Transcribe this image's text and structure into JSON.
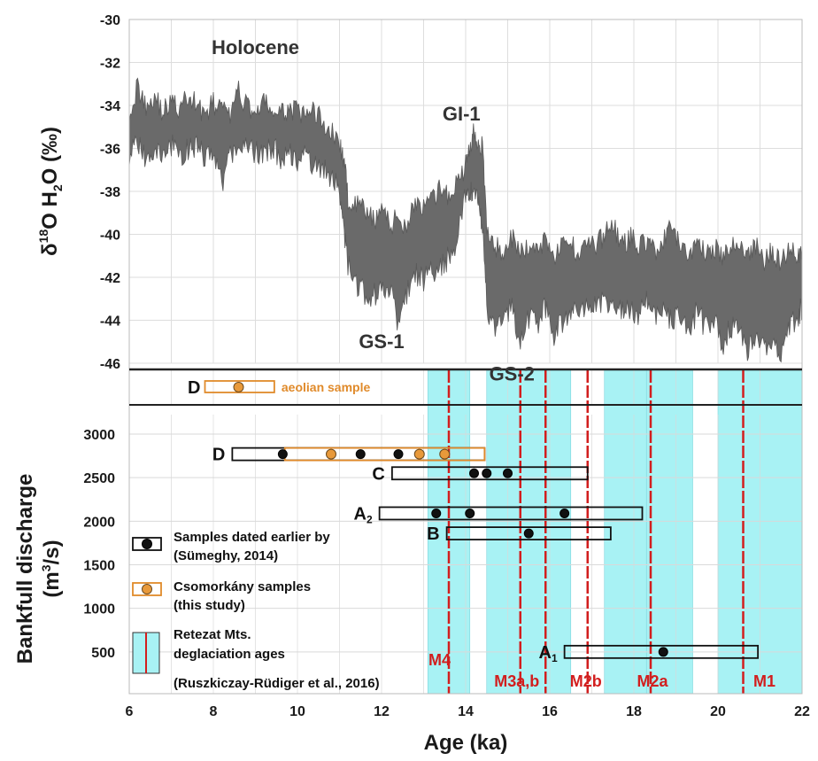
{
  "chart_data": [
    {
      "type": "area",
      "ylabel": "δ18O H2O (‰)",
      "ylabel_parts": {
        "delta": "δ",
        "sup": "18",
        "o": "O H",
        "sub": "2",
        "rest": "O (‰)"
      },
      "xlim": [
        6,
        22
      ],
      "ylim": [
        -46,
        -30
      ],
      "y_ticks": [
        "-30",
        "-32",
        "-34",
        "-36",
        "-38",
        "-40",
        "-42",
        "-44",
        "-46"
      ],
      "grid": true,
      "band_color": "#6a6a6a",
      "envelope": [
        {
          "x": 6.0,
          "upper": -34.2,
          "lower": -36.2
        },
        {
          "x": 6.2,
          "upper": -33.2,
          "lower": -35.8
        },
        {
          "x": 6.4,
          "upper": -34.0,
          "lower": -36.5
        },
        {
          "x": 6.6,
          "upper": -33.5,
          "lower": -36.0
        },
        {
          "x": 6.8,
          "upper": -34.3,
          "lower": -36.4
        },
        {
          "x": 7.0,
          "upper": -33.8,
          "lower": -35.9
        },
        {
          "x": 7.2,
          "upper": -34.2,
          "lower": -36.3
        },
        {
          "x": 7.4,
          "upper": -33.6,
          "lower": -36.0
        },
        {
          "x": 7.6,
          "upper": -33.9,
          "lower": -35.8
        },
        {
          "x": 7.8,
          "upper": -34.4,
          "lower": -36.5
        },
        {
          "x": 8.0,
          "upper": -33.9,
          "lower": -36.1
        },
        {
          "x": 8.2,
          "upper": -34.2,
          "lower": -37.6
        },
        {
          "x": 8.4,
          "upper": -34.5,
          "lower": -36.4
        },
        {
          "x": 8.6,
          "upper": -33.4,
          "lower": -35.8
        },
        {
          "x": 8.8,
          "upper": -34.0,
          "lower": -35.9
        },
        {
          "x": 9.0,
          "upper": -34.3,
          "lower": -36.2
        },
        {
          "x": 9.2,
          "upper": -33.9,
          "lower": -36.3
        },
        {
          "x": 9.4,
          "upper": -34.2,
          "lower": -35.9
        },
        {
          "x": 9.6,
          "upper": -34.5,
          "lower": -36.4
        },
        {
          "x": 9.8,
          "upper": -34.1,
          "lower": -36.2
        },
        {
          "x": 10.0,
          "upper": -34.3,
          "lower": -36.6
        },
        {
          "x": 10.2,
          "upper": -34.6,
          "lower": -36.4
        },
        {
          "x": 10.4,
          "upper": -34.2,
          "lower": -36.8
        },
        {
          "x": 10.6,
          "upper": -34.8,
          "lower": -37.0
        },
        {
          "x": 10.8,
          "upper": -35.2,
          "lower": -37.3
        },
        {
          "x": 11.0,
          "upper": -35.8,
          "lower": -38.0
        },
        {
          "x": 11.1,
          "upper": -36.5,
          "lower": -39.5
        },
        {
          "x": 11.2,
          "upper": -38.3,
          "lower": -41.5
        },
        {
          "x": 11.4,
          "upper": -38.6,
          "lower": -42.2
        },
        {
          "x": 11.6,
          "upper": -38.9,
          "lower": -42.8
        },
        {
          "x": 11.8,
          "upper": -39.4,
          "lower": -42.9
        },
        {
          "x": 12.0,
          "upper": -38.8,
          "lower": -42.6
        },
        {
          "x": 12.2,
          "upper": -39.6,
          "lower": -42.3
        },
        {
          "x": 12.4,
          "upper": -39.2,
          "lower": -44.2
        },
        {
          "x": 12.6,
          "upper": -39.6,
          "lower": -42.7
        },
        {
          "x": 12.8,
          "upper": -38.4,
          "lower": -41.9
        },
        {
          "x": 13.0,
          "upper": -38.9,
          "lower": -42.1
        },
        {
          "x": 13.2,
          "upper": -38.5,
          "lower": -41.7
        },
        {
          "x": 13.4,
          "upper": -37.9,
          "lower": -41.5
        },
        {
          "x": 13.6,
          "upper": -38.3,
          "lower": -41.1
        },
        {
          "x": 13.8,
          "upper": -37.6,
          "lower": -40.2
        },
        {
          "x": 14.0,
          "upper": -36.8,
          "lower": -38.2
        },
        {
          "x": 14.1,
          "upper": -36.0,
          "lower": -37.8
        },
        {
          "x": 14.2,
          "upper": -35.0,
          "lower": -38.0
        },
        {
          "x": 14.3,
          "upper": -35.8,
          "lower": -38.4
        },
        {
          "x": 14.4,
          "upper": -36.0,
          "lower": -39.5
        },
        {
          "x": 14.5,
          "upper": -39.8,
          "lower": -43.4
        },
        {
          "x": 14.7,
          "upper": -40.6,
          "lower": -44.5
        },
        {
          "x": 14.9,
          "upper": -40.8,
          "lower": -43.8
        },
        {
          "x": 15.1,
          "upper": -40.2,
          "lower": -43.3
        },
        {
          "x": 15.3,
          "upper": -40.9,
          "lower": -45.0
        },
        {
          "x": 15.5,
          "upper": -40.5,
          "lower": -43.8
        },
        {
          "x": 15.7,
          "upper": -40.8,
          "lower": -44.2
        },
        {
          "x": 15.9,
          "upper": -40.1,
          "lower": -43.4
        },
        {
          "x": 16.1,
          "upper": -41.0,
          "lower": -44.6
        },
        {
          "x": 16.3,
          "upper": -40.6,
          "lower": -44.0
        },
        {
          "x": 16.5,
          "upper": -40.4,
          "lower": -43.6
        },
        {
          "x": 16.7,
          "upper": -40.9,
          "lower": -43.8
        },
        {
          "x": 16.9,
          "upper": -40.2,
          "lower": -43.0
        },
        {
          "x": 17.1,
          "upper": -40.6,
          "lower": -43.5
        },
        {
          "x": 17.3,
          "upper": -40.0,
          "lower": -43.0
        },
        {
          "x": 17.5,
          "upper": -39.4,
          "lower": -43.2
        },
        {
          "x": 17.7,
          "upper": -40.6,
          "lower": -43.7
        },
        {
          "x": 17.9,
          "upper": -40.1,
          "lower": -43.4
        },
        {
          "x": 18.1,
          "upper": -40.5,
          "lower": -43.9
        },
        {
          "x": 18.3,
          "upper": -40.3,
          "lower": -43.2
        },
        {
          "x": 18.5,
          "upper": -40.8,
          "lower": -43.9
        },
        {
          "x": 18.7,
          "upper": -40.4,
          "lower": -43.5
        },
        {
          "x": 18.9,
          "upper": -39.7,
          "lower": -44.1
        },
        {
          "x": 19.1,
          "upper": -40.6,
          "lower": -43.7
        },
        {
          "x": 19.3,
          "upper": -41.0,
          "lower": -44.4
        },
        {
          "x": 19.5,
          "upper": -40.2,
          "lower": -43.6
        },
        {
          "x": 19.7,
          "upper": -40.9,
          "lower": -44.3
        },
        {
          "x": 19.9,
          "upper": -40.5,
          "lower": -43.8
        },
        {
          "x": 20.1,
          "upper": -41.1,
          "lower": -45.1
        },
        {
          "x": 20.3,
          "upper": -40.7,
          "lower": -44.4
        },
        {
          "x": 20.5,
          "upper": -40.3,
          "lower": -44.0
        },
        {
          "x": 20.7,
          "upper": -41.0,
          "lower": -45.4
        },
        {
          "x": 20.9,
          "upper": -40.6,
          "lower": -44.6
        },
        {
          "x": 21.1,
          "upper": -41.2,
          "lower": -45.2
        },
        {
          "x": 21.3,
          "upper": -40.8,
          "lower": -44.8
        },
        {
          "x": 21.5,
          "upper": -41.3,
          "lower": -45.6
        },
        {
          "x": 21.7,
          "upper": -40.5,
          "lower": -44.2
        },
        {
          "x": 21.9,
          "upper": -40.9,
          "lower": -43.8
        },
        {
          "x": 22.0,
          "upper": -40.6,
          "lower": -43.4
        }
      ],
      "annotations": [
        {
          "text": "Holocene",
          "x": 9.0,
          "y": -31.6
        },
        {
          "text": "GI-1",
          "x": 13.9,
          "y": -34.7
        },
        {
          "text": "GS-1",
          "x": 12.0,
          "y": -45.3
        },
        {
          "text": "GS-2",
          "x": 15.1,
          "y": -46.8
        }
      ]
    },
    {
      "type": "scatter",
      "xlabel": "Age (ka)",
      "ylabel": "Bankfull discharge (m3/s)",
      "ylabel_parts": {
        "main": "Bankfull discharge",
        "unit_pre": "(m",
        "sup": "3",
        "unit_post": "/s)"
      },
      "xlim": [
        6,
        22
      ],
      "ylim": [
        0,
        3000
      ],
      "x_ticks": [
        "6",
        "8",
        "10",
        "12",
        "14",
        "16",
        "18",
        "20",
        "22"
      ],
      "y_ticks": [
        "500",
        "1000",
        "1500",
        "2000",
        "2500",
        "3000"
      ],
      "grid": true,
      "deglaciation_bands": [
        {
          "from": 13.1,
          "to": 14.1
        },
        {
          "from": 14.5,
          "to": 16.5
        },
        {
          "from": 17.3,
          "to": 18.3
        },
        {
          "from": 18.3,
          "to": 19.4
        },
        {
          "from": 20.0,
          "to": 22.0
        }
      ],
      "band_color": "#a8f2f4",
      "deglaciation_ages": [
        {
          "name": "M4",
          "x": 13.6
        },
        {
          "name": "M3a,b",
          "x": 15.3
        },
        {
          "name": "",
          "x": 15.9
        },
        {
          "name": "M2b",
          "x": 16.9
        },
        {
          "name": "M2a",
          "x": 18.4
        },
        {
          "name": "M1",
          "x": 20.6
        }
      ],
      "age_line_color": "#d21e1e",
      "ranges": [
        {
          "name": "D",
          "sub": "",
          "y": 2770,
          "x_min": 8.45,
          "x_max": 14.45,
          "color": "#111111"
        },
        {
          "name": "C",
          "sub": "",
          "y": 2550,
          "x_min": 12.25,
          "x_max": 16.9,
          "color": "#111111"
        },
        {
          "name": "A",
          "sub": "2",
          "y": 2090,
          "x_min": 11.95,
          "x_max": 18.2,
          "color": "#111111"
        },
        {
          "name": "B",
          "sub": "",
          "y": 1860,
          "x_min": 13.55,
          "x_max": 17.45,
          "color": "#111111"
        },
        {
          "name": "A",
          "sub": "1",
          "y": 500,
          "x_min": 16.35,
          "x_max": 20.95,
          "color": "#111111"
        },
        {
          "name": "",
          "sub": "",
          "y": 2770,
          "x_min": 9.7,
          "x_max": 14.45,
          "color": "#e08a2a"
        }
      ],
      "series": [
        {
          "name": "Samples dated earlier by (Sümeghy, 2014)",
          "color": "#111111",
          "points": [
            {
              "x": 9.65,
              "y": 2770
            },
            {
              "x": 11.5,
              "y": 2770
            },
            {
              "x": 12.4,
              "y": 2770
            },
            {
              "x": 14.2,
              "y": 2550
            },
            {
              "x": 14.5,
              "y": 2550
            },
            {
              "x": 15.0,
              "y": 2550
            },
            {
              "x": 13.3,
              "y": 2090
            },
            {
              "x": 14.1,
              "y": 2090
            },
            {
              "x": 16.35,
              "y": 2090
            },
            {
              "x": 15.5,
              "y": 1860
            },
            {
              "x": 18.7,
              "y": 500
            }
          ]
        },
        {
          "name": "Csomorkány samples (this study)",
          "color": "#e8993a",
          "points": [
            {
              "x": 10.8,
              "y": 2770
            },
            {
              "x": 12.9,
              "y": 2770
            },
            {
              "x": 13.5,
              "y": 2770
            }
          ]
        }
      ],
      "aeolian": {
        "name": "D",
        "label": "aeolian sample",
        "x_min": 7.8,
        "x_max": 9.45,
        "x": 8.6,
        "color": "#e08a2a"
      },
      "legend": [
        {
          "kind": "black",
          "line1": "Samples dated earlier by",
          "line2": "(Sümeghy, 2014)"
        },
        {
          "kind": "orange",
          "line1": "Csomorkány samples",
          "line2": "(this study)"
        },
        {
          "kind": "band",
          "line1": "Retezat Mts.",
          "line2": "deglaciation ages",
          "line3": "(Ruszkiczay-Rüdiger et al., 2016)"
        }
      ]
    }
  ]
}
